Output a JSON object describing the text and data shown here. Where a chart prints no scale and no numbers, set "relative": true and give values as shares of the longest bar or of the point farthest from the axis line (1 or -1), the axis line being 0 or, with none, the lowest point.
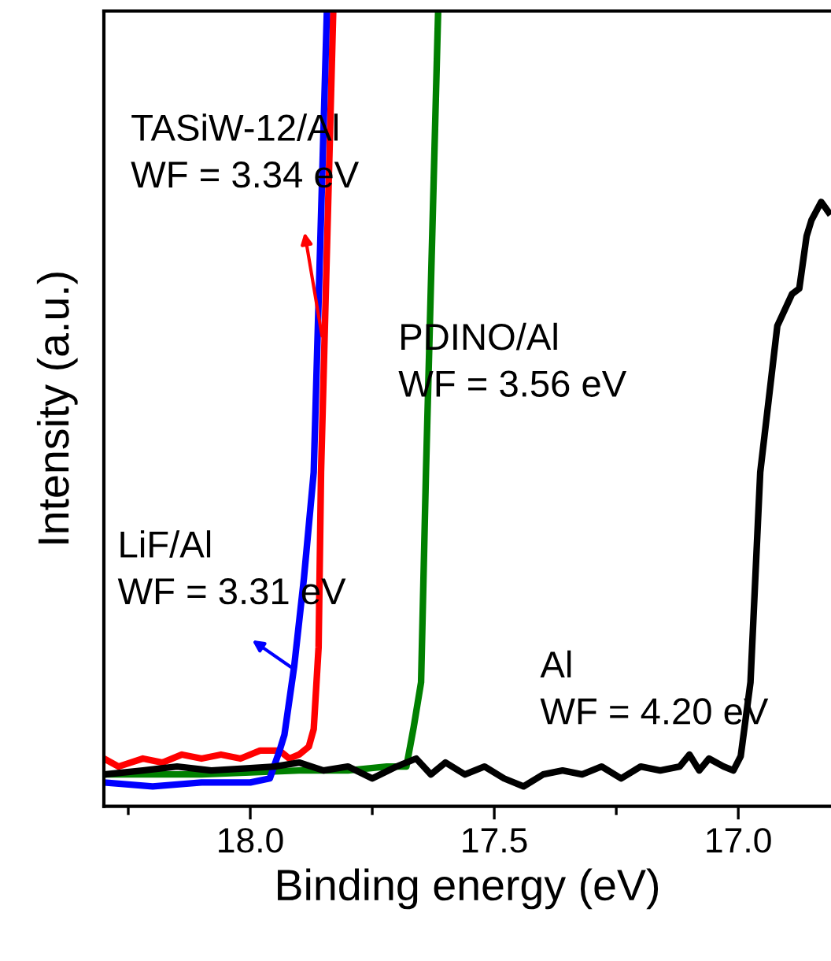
{
  "chart_data": {
    "type": "line",
    "xlabel": "Binding energy (eV)",
    "ylabel": "Intensity (a.u.)",
    "relative": true,
    "xlim": [
      18.3,
      16.81
    ],
    "xticks": [
      {
        "value": 18.25,
        "label": null
      },
      {
        "value": 18.0,
        "label": "18.0"
      },
      {
        "value": 17.75,
        "label": null
      },
      {
        "value": 17.5,
        "label": "17.5"
      },
      {
        "value": 17.25,
        "label": null
      },
      {
        "value": 17.0,
        "label": "17.0"
      }
    ],
    "tick_labels": "x",
    "legend": false,
    "grid": false,
    "marker": "none",
    "line_style": "solid",
    "annotations": [
      "TASiW-12/Al\nWF = 3.34 eV",
      "PDINO/Al\nWF = 3.56 eV",
      "LiF/Al\nWF = 3.31 eV",
      "Al\nWF = 4.20 eV"
    ],
    "series": [
      {
        "color": "#ff0000",
        "x": [
          18.3,
          18.27,
          18.22,
          18.18,
          18.14,
          18.1,
          18.06,
          18.02,
          17.98,
          17.94,
          17.92,
          17.9,
          17.88,
          17.87,
          17.86,
          17.855,
          17.83
        ],
        "values": [
          0.06,
          0.05,
          0.06,
          0.055,
          0.065,
          0.06,
          0.065,
          0.06,
          0.07,
          0.07,
          0.06,
          0.065,
          0.075,
          0.097,
          0.2,
          0.42,
          1.0
        ]
      },
      {
        "color": "#008000",
        "x": [
          18.3,
          18.1,
          17.9,
          17.8,
          17.72,
          17.68,
          17.665,
          17.65,
          17.64,
          17.615
        ],
        "values": [
          0.04,
          0.04,
          0.045,
          0.045,
          0.05,
          0.05,
          0.1,
          0.156,
          0.42,
          1.0
        ]
      },
      {
        "color": "#0000ff",
        "x": [
          18.3,
          18.2,
          18.1,
          18.0,
          17.96,
          17.94,
          17.93,
          17.91,
          17.89,
          17.87,
          17.843
        ],
        "values": [
          0.03,
          0.025,
          0.03,
          0.03,
          0.035,
          0.07,
          0.09,
          0.176,
          0.287,
          0.42,
          1.0
        ]
      },
      {
        "color": "#000000",
        "x": [
          18.3,
          18.22,
          18.15,
          18.08,
          18.0,
          17.95,
          17.9,
          17.85,
          17.8,
          17.75,
          17.7,
          17.66,
          17.63,
          17.6,
          17.56,
          17.52,
          17.48,
          17.44,
          17.4,
          17.36,
          17.32,
          17.28,
          17.24,
          17.2,
          17.16,
          17.12,
          17.1,
          17.08,
          17.06,
          17.03,
          17.01,
          16.995,
          16.975,
          16.96,
          16.955,
          16.92,
          16.89,
          16.875,
          16.86,
          16.85,
          16.83,
          16.815
        ],
        "values": [
          0.04,
          0.045,
          0.05,
          0.045,
          0.048,
          0.05,
          0.055,
          0.045,
          0.05,
          0.035,
          0.05,
          0.06,
          0.04,
          0.055,
          0.04,
          0.05,
          0.035,
          0.025,
          0.04,
          0.045,
          0.04,
          0.05,
          0.035,
          0.05,
          0.045,
          0.05,
          0.065,
          0.045,
          0.06,
          0.05,
          0.045,
          0.063,
          0.156,
          0.354,
          0.42,
          0.604,
          0.644,
          0.651,
          0.717,
          0.737,
          0.76,
          0.747
        ]
      }
    ]
  }
}
